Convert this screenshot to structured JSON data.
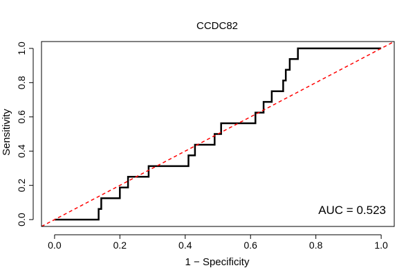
{
  "chart_data": {
    "type": "line",
    "title": "CCDC82",
    "xlabel": "1 − Specificity",
    "ylabel": "Sensitivity",
    "xlim": [
      -0.04,
      1.04
    ],
    "ylim": [
      -0.04,
      1.04
    ],
    "x_ticks": [
      0.0,
      0.2,
      0.4,
      0.6,
      0.8,
      1.0
    ],
    "y_ticks": [
      0.0,
      0.2,
      0.4,
      0.6,
      0.8,
      1.0
    ],
    "x_tick_labels": [
      "0.0",
      "0.2",
      "0.4",
      "0.6",
      "0.8",
      "1.0"
    ],
    "y_tick_labels": [
      "0.0",
      "0.2",
      "0.4",
      "0.6",
      "0.8",
      "1.0"
    ],
    "grid": false,
    "annotation": "AUC = 0.523",
    "annotation_position": "bottom-right",
    "series": [
      {
        "name": "ROC curve",
        "style": "step",
        "color": "#000000",
        "points": [
          [
            0.0,
            0.0
          ],
          [
            0.135,
            0.0
          ],
          [
            0.135,
            0.0625
          ],
          [
            0.143,
            0.0625
          ],
          [
            0.143,
            0.125
          ],
          [
            0.2,
            0.125
          ],
          [
            0.2,
            0.1875
          ],
          [
            0.225,
            0.1875
          ],
          [
            0.225,
            0.25
          ],
          [
            0.288,
            0.25
          ],
          [
            0.288,
            0.3125
          ],
          [
            0.41,
            0.3125
          ],
          [
            0.41,
            0.375
          ],
          [
            0.43,
            0.375
          ],
          [
            0.43,
            0.4375
          ],
          [
            0.49,
            0.4375
          ],
          [
            0.49,
            0.5
          ],
          [
            0.51,
            0.5
          ],
          [
            0.51,
            0.5625
          ],
          [
            0.615,
            0.5625
          ],
          [
            0.615,
            0.625
          ],
          [
            0.64,
            0.625
          ],
          [
            0.64,
            0.6875
          ],
          [
            0.665,
            0.6875
          ],
          [
            0.665,
            0.75
          ],
          [
            0.7,
            0.75
          ],
          [
            0.7,
            0.8125
          ],
          [
            0.708,
            0.8125
          ],
          [
            0.708,
            0.875
          ],
          [
            0.72,
            0.875
          ],
          [
            0.72,
            0.9375
          ],
          [
            0.745,
            0.9375
          ],
          [
            0.745,
            1.0
          ],
          [
            1.0,
            1.0
          ]
        ]
      },
      {
        "name": "Reference",
        "style": "dashed",
        "color": "#ff0000",
        "points": [
          [
            -0.04,
            -0.04
          ],
          [
            1.04,
            1.04
          ]
        ]
      }
    ]
  }
}
